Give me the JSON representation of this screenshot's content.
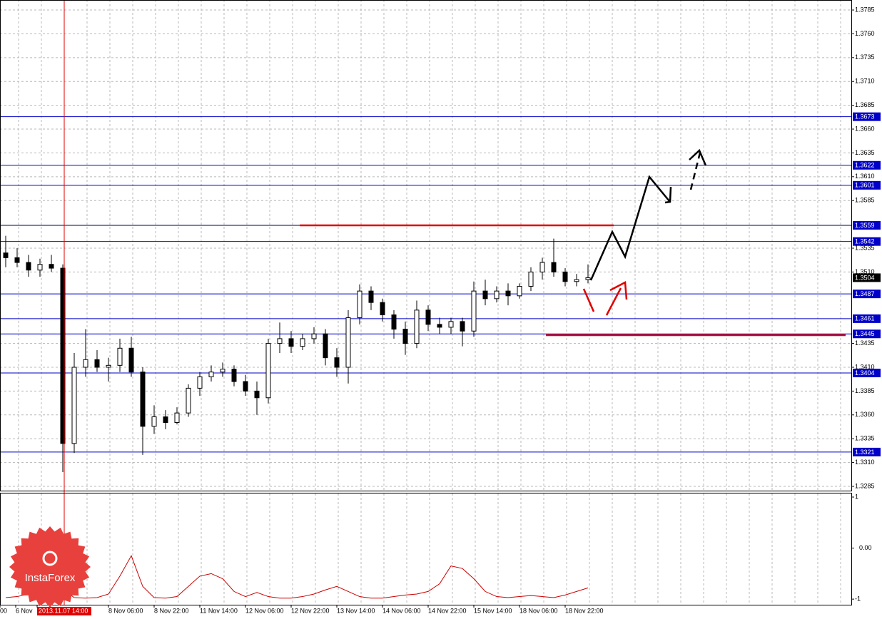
{
  "chart_data": {
    "type": "candlestick",
    "open": [
      1.353,
      1.3525,
      1.352,
      1.3512,
      1.3518,
      1.3514,
      1.333,
      1.341,
      1.3418,
      1.341,
      1.3412,
      1.343,
      1.3405,
      1.3348,
      1.3358,
      1.3352,
      1.3362,
      1.3388,
      1.34,
      1.3405,
      1.3408,
      1.3395,
      1.3385,
      1.3378,
      1.3435,
      1.344,
      1.3432,
      1.344,
      1.3445,
      1.342,
      1.341,
      1.3462,
      1.349,
      1.3478,
      1.3465,
      1.345,
      1.3435,
      1.347,
      1.3455,
      1.3452,
      1.3458,
      1.3448,
      1.349,
      1.3482,
      1.349,
      1.3485,
      1.3495,
      1.351,
      1.352,
      1.351,
      1.35,
      1.3502
    ],
    "high": [
      1.3548,
      1.3535,
      1.3528,
      1.3524,
      1.3528,
      1.3518,
      1.3425,
      1.345,
      1.3428,
      1.342,
      1.344,
      1.3442,
      1.341,
      1.337,
      1.3365,
      1.3368,
      1.3392,
      1.3405,
      1.3412,
      1.3415,
      1.3412,
      1.3402,
      1.3395,
      1.344,
      1.3457,
      1.3448,
      1.3445,
      1.3452,
      1.345,
      1.343,
      1.347,
      1.3497,
      1.3495,
      1.3482,
      1.347,
      1.3458,
      1.348,
      1.3475,
      1.3462,
      1.3462,
      1.3462,
      1.35,
      1.3502,
      1.3495,
      1.3498,
      1.3498,
      1.3515,
      1.3525,
      1.3545,
      1.3514,
      1.3508,
      1.3518
    ],
    "low": [
      1.3515,
      1.3515,
      1.3505,
      1.3505,
      1.351,
      1.33,
      1.332,
      1.34,
      1.3405,
      1.3395,
      1.3405,
      1.34,
      1.3318,
      1.334,
      1.3345,
      1.335,
      1.3358,
      1.338,
      1.3395,
      1.34,
      1.339,
      1.338,
      1.336,
      1.3372,
      1.3425,
      1.3425,
      1.3428,
      1.3435,
      1.3412,
      1.34,
      1.3393,
      1.3455,
      1.347,
      1.3458,
      1.344,
      1.3423,
      1.343,
      1.3448,
      1.3445,
      1.3445,
      1.3432,
      1.3442,
      1.3475,
      1.3478,
      1.3475,
      1.3482,
      1.349,
      1.3502,
      1.3505,
      1.3495,
      1.3495,
      1.3498
    ],
    "close": [
      1.3525,
      1.352,
      1.3512,
      1.3518,
      1.3514,
      1.333,
      1.341,
      1.3418,
      1.341,
      1.3412,
      1.343,
      1.3405,
      1.3348,
      1.3358,
      1.3352,
      1.3362,
      1.3388,
      1.34,
      1.3405,
      1.3408,
      1.3395,
      1.3385,
      1.3378,
      1.3435,
      1.344,
      1.3432,
      1.344,
      1.3445,
      1.342,
      1.341,
      1.3462,
      1.349,
      1.3478,
      1.3465,
      1.345,
      1.3435,
      1.347,
      1.3455,
      1.3452,
      1.3458,
      1.3448,
      1.349,
      1.3482,
      1.349,
      1.3485,
      1.3495,
      1.351,
      1.352,
      1.351,
      1.35,
      1.3502,
      1.3504
    ],
    "ylim": [
      1.32805,
      1.37955
    ],
    "yticks": [
      1.3785,
      {
        "value": 1.376,
        "label": "1.3760"
      },
      1.3735,
      {
        "value": 1.371,
        "label": "1.3710"
      },
      1.3685,
      {
        "value": 1.366,
        "label": "1.3660"
      },
      1.3635,
      {
        "value": 1.361,
        "label": "1.3610"
      },
      1.3585,
      1.3535,
      {
        "value": 1.351,
        "label": "1.3510"
      },
      1.3435,
      {
        "value": 1.341,
        "label": "1.3410"
      },
      1.3385,
      {
        "value": 1.336,
        "label": "1.3360"
      },
      1.3335,
      {
        "value": 1.331,
        "label": "1.3310"
      },
      1.3285
    ],
    "grid": true,
    "levels": [
      {
        "value": 1.3673,
        "color": "#0000c8"
      },
      {
        "value": 1.3622,
        "color": "#0000c8"
      },
      {
        "value": 1.3601,
        "color": "#0000c8"
      },
      {
        "value": 1.3559,
        "color": "#000050"
      },
      {
        "value": 1.3542,
        "color": "#202040"
      },
      {
        "value": 1.3487,
        "color": "#0000c8"
      },
      {
        "value": 1.3461,
        "color": "#0000c8"
      },
      {
        "value": 1.3445,
        "color": "#0000c8"
      },
      {
        "value": 1.3404,
        "color": "#0000c8"
      },
      {
        "value": 1.3321,
        "color": "#0000c8"
      }
    ],
    "current_price": 1.3504,
    "x_labels": [
      "00",
      "6 Nov",
      "2013.11.07 14:00",
      "8 Nov 06:00",
      "8 Nov 22:00",
      "11 Nov 14:00",
      "12 Nov 06:00",
      "12 Nov 22:00",
      "13 Nov 14:00",
      "14 Nov 06:00",
      "14 Nov 22:00",
      "15 Nov 14:00",
      "18 Nov 06:00",
      "18 Nov 22:00"
    ],
    "indicator": {
      "color": "#cc0000",
      "ylim": [
        -1.11,
        1.07
      ],
      "yticks": [
        1,
        {
          "value": 0,
          "label": "0.00"
        },
        -1
      ],
      "values": [
        -0.97,
        -0.95,
        -0.9,
        -0.75,
        -0.65,
        -0.8,
        -0.97,
        -0.98,
        -0.97,
        -0.9,
        -0.55,
        -0.15,
        -0.75,
        -0.97,
        -0.98,
        -0.95,
        -0.75,
        -0.55,
        -0.5,
        -0.6,
        -0.85,
        -0.95,
        -0.87,
        -0.95,
        -0.98,
        -0.98,
        -0.95,
        -0.9,
        -0.82,
        -0.75,
        -0.85,
        -0.95,
        -0.98,
        -0.98,
        -0.95,
        -0.92,
        -0.9,
        -0.85,
        -0.7,
        -0.35,
        -0.4,
        -0.6,
        -0.85,
        -0.95,
        -0.97,
        -0.95,
        -0.93,
        -0.95,
        -0.97,
        -0.92,
        -0.85,
        -0.78
      ]
    },
    "watermark": "InstaForex"
  }
}
